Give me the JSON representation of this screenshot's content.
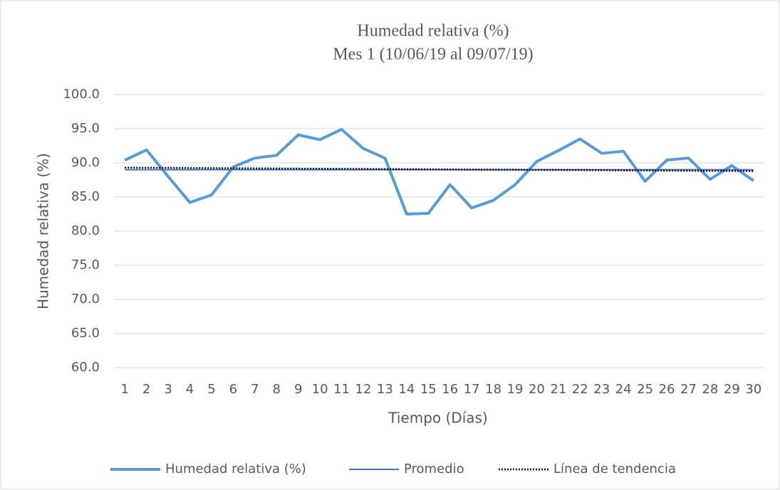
{
  "chart_data": {
    "type": "line",
    "title": "Humedad relativa (%)",
    "subtitle": "Mes 1 (10/06/19 al 09/07/19)",
    "x_label": "Tiempo (Días)",
    "y_label": "Humedad relativa (%)",
    "categories": [
      "1",
      "2",
      "3",
      "4",
      "5",
      "6",
      "7",
      "8",
      "9",
      "10",
      "11",
      "12",
      "13",
      "14",
      "15",
      "16",
      "17",
      "18",
      "19",
      "20",
      "21",
      "22",
      "23",
      "24",
      "25",
      "26",
      "27",
      "28",
      "29",
      "30"
    ],
    "series": [
      {
        "name": "Humedad relativa (%)",
        "color": "#5b9bd5",
        "style": "solid",
        "values": [
          90.4,
          91.9,
          88.0,
          84.2,
          85.3,
          89.4,
          90.7,
          91.1,
          94.1,
          93.4,
          94.9,
          92.1,
          90.7,
          82.5,
          82.6,
          86.8,
          83.4,
          84.5,
          86.8,
          90.2,
          91.8,
          93.5,
          91.4,
          91.7,
          87.3,
          90.4,
          90.7,
          87.6,
          89.6,
          87.4
        ]
      },
      {
        "name": "Promedio",
        "color": "#4472c4",
        "style": "solid",
        "values": [
          89.0,
          89.0,
          89.0,
          89.0,
          89.0,
          89.0,
          89.0,
          89.0,
          89.0,
          89.0,
          89.0,
          89.0,
          89.0,
          89.0,
          89.0,
          89.0,
          89.0,
          89.0,
          89.0,
          89.0,
          89.0,
          89.0,
          89.0,
          89.0,
          89.0,
          89.0,
          89.0,
          89.0,
          89.0,
          89.0
        ]
      },
      {
        "name": "Línea de tendencia",
        "color": "#000000",
        "style": "dotted",
        "values": [
          89.3,
          89.28,
          89.27,
          89.25,
          89.23,
          89.21,
          89.2,
          89.18,
          89.16,
          89.14,
          89.13,
          89.11,
          89.09,
          89.08,
          89.06,
          89.04,
          89.02,
          89.01,
          88.99,
          88.97,
          88.96,
          88.94,
          88.92,
          88.9,
          88.89,
          88.87,
          88.85,
          88.83,
          88.82,
          88.8
        ]
      }
    ],
    "ylim": [
      60,
      100
    ],
    "yticks": [
      {
        "value": 60,
        "label": "60.0"
      },
      {
        "value": 65,
        "label": "65.0"
      },
      {
        "value": 70,
        "label": "70.0"
      },
      {
        "value": 75,
        "label": "75.0"
      },
      {
        "value": 80,
        "label": "80.0"
      },
      {
        "value": 85,
        "label": "85.0"
      },
      {
        "value": 90,
        "label": "90.0"
      },
      {
        "value": 95,
        "label": "95.0"
      },
      {
        "value": 100,
        "label": "100.0"
      }
    ],
    "grid": true,
    "legend": "bottom"
  }
}
